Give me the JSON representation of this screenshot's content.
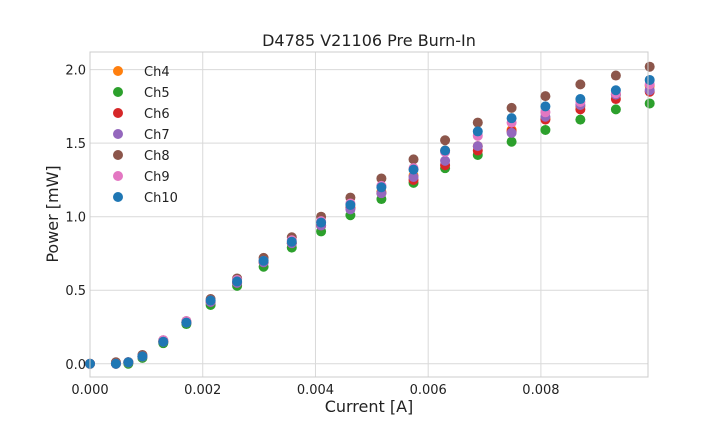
{
  "chart_data": {
    "type": "scatter",
    "title": "D4785 V21106 Pre Burn-In",
    "xlabel": "Current [A]",
    "ylabel": "Power [mW]",
    "xlim": [
      0.0,
      0.0099
    ],
    "ylim": [
      -0.09,
      2.12
    ],
    "xticks": [
      "0.000",
      "0.002",
      "0.004",
      "0.006",
      "0.008"
    ],
    "xtick_values": [
      0.0,
      0.002,
      0.004,
      0.006,
      0.008
    ],
    "yticks": [
      "0.0",
      "0.5",
      "1.0",
      "1.5",
      "2.0"
    ],
    "ytick_values": [
      0.0,
      0.5,
      1.0,
      1.5,
      2.0
    ],
    "grid": true,
    "legend_position": "top-left",
    "x": [
      0.0,
      0.00046,
      0.00068,
      0.00093,
      0.0013,
      0.00171,
      0.00214,
      0.00261,
      0.00308,
      0.00358,
      0.0041,
      0.00462,
      0.00517,
      0.00574,
      0.0063,
      0.00688,
      0.00748,
      0.00808,
      0.0087,
      0.00933,
      0.00993
    ],
    "series": [
      {
        "name": "Ch4",
        "color": "#ff7f0e",
        "values": [
          0.0,
          0.0,
          0.01,
          0.05,
          0.15,
          0.28,
          0.42,
          0.55,
          0.69,
          0.82,
          0.94,
          1.06,
          1.17,
          1.28,
          1.45,
          1.48,
          1.59,
          1.67,
          1.75,
          1.83,
          1.89
        ]
      },
      {
        "name": "Ch5",
        "color": "#2ca02c",
        "values": [
          0.0,
          0.0,
          0.0,
          0.04,
          0.14,
          0.27,
          0.4,
          0.53,
          0.66,
          0.79,
          0.9,
          1.01,
          1.12,
          1.23,
          1.33,
          1.42,
          1.51,
          1.59,
          1.66,
          1.73,
          1.77
        ]
      },
      {
        "name": "Ch6",
        "color": "#d62728",
        "values": [
          0.0,
          0.0,
          0.01,
          0.05,
          0.15,
          0.28,
          0.42,
          0.55,
          0.69,
          0.82,
          0.94,
          1.06,
          1.16,
          1.25,
          1.35,
          1.45,
          1.58,
          1.66,
          1.73,
          1.8,
          1.85
        ]
      },
      {
        "name": "Ch7",
        "color": "#9467bd",
        "values": [
          0.0,
          0.0,
          0.01,
          0.05,
          0.15,
          0.28,
          0.42,
          0.55,
          0.69,
          0.82,
          0.94,
          1.05,
          1.16,
          1.27,
          1.38,
          1.48,
          1.57,
          1.68,
          1.76,
          1.83,
          1.86
        ]
      },
      {
        "name": "Ch8",
        "color": "#8c564b",
        "values": [
          0.0,
          0.01,
          0.01,
          0.06,
          0.16,
          0.29,
          0.44,
          0.58,
          0.72,
          0.86,
          1.0,
          1.13,
          1.26,
          1.39,
          1.52,
          1.64,
          1.74,
          1.82,
          1.9,
          1.96,
          2.02
        ]
      },
      {
        "name": "Ch9",
        "color": "#e377c2",
        "values": [
          0.0,
          0.0,
          0.01,
          0.05,
          0.16,
          0.29,
          0.43,
          0.57,
          0.7,
          0.84,
          0.97,
          1.09,
          1.21,
          1.33,
          1.44,
          1.55,
          1.64,
          1.71,
          1.78,
          1.84,
          1.9
        ]
      },
      {
        "name": "Ch10",
        "color": "#1f77b4",
        "values": [
          0.0,
          0.0,
          0.01,
          0.05,
          0.15,
          0.28,
          0.43,
          0.56,
          0.7,
          0.83,
          0.96,
          1.08,
          1.2,
          1.32,
          1.45,
          1.58,
          1.67,
          1.75,
          1.8,
          1.86,
          1.93
        ]
      }
    ]
  }
}
